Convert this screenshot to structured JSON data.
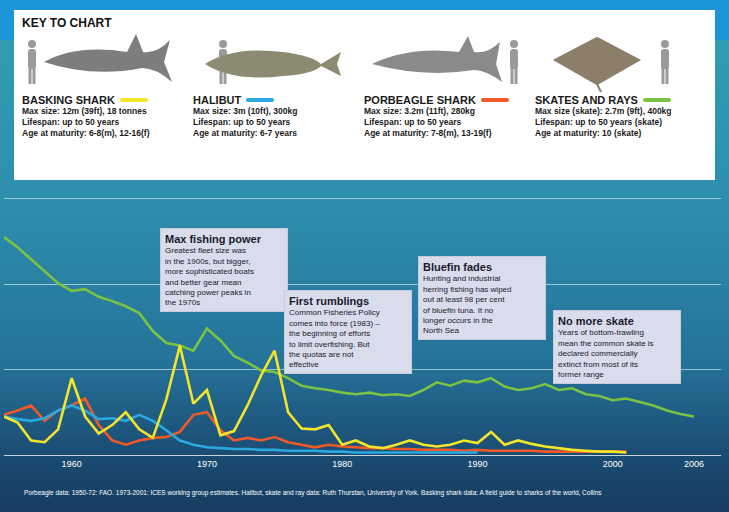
{
  "key_title": "KEY TO CHART",
  "chart_data": {
    "type": "line",
    "x": [
      1955,
      1956,
      1957,
      1958,
      1959,
      1960,
      1961,
      1962,
      1963,
      1964,
      1965,
      1966,
      1967,
      1968,
      1969,
      1970,
      1971,
      1972,
      1973,
      1974,
      1975,
      1976,
      1977,
      1978,
      1979,
      1980,
      1981,
      1982,
      1983,
      1984,
      1985,
      1986,
      1987,
      1988,
      1989,
      1990,
      1991,
      1992,
      1993,
      1994,
      1995,
      1996,
      1997,
      1998,
      1999,
      2000,
      2001,
      2002,
      2003,
      2004,
      2005,
      2006
    ],
    "xlim": [
      1955,
      2008
    ],
    "xticks": [
      1960,
      1970,
      1980,
      1990,
      2000,
      2006
    ],
    "ylim": [
      0,
      3.1
    ],
    "yticks": [
      0,
      1,
      2,
      3
    ],
    "grid": true,
    "tick_labels": "x",
    "series": [
      {
        "name": "BASKING SHARK",
        "color": "#f3e52a",
        "key_lines": [
          "Max size: 12m (39ft), 18 tonnes",
          "Lifespan: up to 50 years",
          "Age at maturity: 6-8(m), 12-16(f)"
        ],
        "values": [
          0.45,
          0.38,
          0.17,
          0.15,
          0.3,
          0.9,
          0.45,
          0.25,
          0.35,
          0.5,
          0.3,
          0.2,
          0.65,
          1.28,
          0.6,
          0.76,
          0.23,
          0.28,
          0.58,
          0.93,
          1.22,
          0.5,
          0.31,
          0.3,
          0.35,
          0.12,
          0.17,
          0.1,
          0.08,
          0.12,
          0.17,
          0.12,
          0.1,
          0.12,
          0.17,
          0.14,
          0.27,
          0.12,
          0.17,
          0.13,
          0.1,
          0.08,
          0.06,
          0.05,
          0.04,
          0.04,
          0.03,
          null,
          null,
          null,
          null,
          null
        ]
      },
      {
        "name": "HALIBUT",
        "color": "#2aa8e0",
        "key_lines": [
          "Max size: 3m (10ft), 300kg",
          "Lifespan: up to 50 years",
          "Age at maturity: 6-7 years"
        ],
        "values": [
          0.45,
          0.42,
          0.4,
          0.43,
          0.52,
          0.58,
          0.52,
          0.42,
          0.43,
          0.4,
          0.47,
          0.4,
          0.29,
          0.17,
          0.12,
          0.09,
          0.08,
          0.07,
          0.07,
          0.06,
          0.06,
          0.05,
          0.05,
          0.05,
          0.04,
          0.04,
          0.03,
          0.03,
          0.03,
          0.03,
          0.03,
          0.03,
          0.03,
          0.03,
          0.03,
          0.03,
          null,
          null,
          null,
          null,
          null,
          null,
          null,
          null,
          null,
          null,
          null,
          null,
          null,
          null,
          null,
          null
        ]
      },
      {
        "name": "PORBEAGLE SHARK",
        "color": "#f05a28",
        "key_lines": [
          "Max size: 3.2m (11ft), 280kg",
          "Lifespan: up to 50 years",
          "Age at maturity: 7-8(m), 13-19(f)"
        ],
        "values": [
          0.47,
          0.52,
          0.58,
          0.4,
          0.52,
          0.58,
          0.66,
          0.35,
          0.17,
          0.12,
          0.17,
          0.2,
          0.21,
          0.27,
          0.47,
          0.5,
          0.29,
          0.17,
          0.2,
          0.17,
          0.21,
          0.15,
          0.12,
          0.09,
          0.12,
          0.1,
          0.09,
          0.08,
          0.08,
          0.07,
          0.07,
          0.06,
          0.06,
          0.06,
          0.05,
          0.06,
          0.05,
          0.05,
          0.05,
          0.05,
          0.04,
          0.04,
          0.04,
          0.04,
          0.04,
          0.04,
          0.04,
          null,
          null,
          null,
          null,
          null
        ]
      },
      {
        "name": "SKATES AND RAYS",
        "color": "#7cc242",
        "key_lines": [
          "Max size (skate): 2.7m (9ft), 400kg",
          "Lifespan: up to 50 years (skate)",
          "Age at maturity: 10 (skate)"
        ],
        "values": [
          2.55,
          2.43,
          2.29,
          2.15,
          2.01,
          1.92,
          1.94,
          1.85,
          1.8,
          1.74,
          1.66,
          1.45,
          1.31,
          1.28,
          1.22,
          1.48,
          1.34,
          1.16,
          1.08,
          0.99,
          0.97,
          0.9,
          0.81,
          0.78,
          0.76,
          0.73,
          0.71,
          0.73,
          0.7,
          0.71,
          0.69,
          0.76,
          0.85,
          0.81,
          0.87,
          0.85,
          0.9,
          0.8,
          0.76,
          0.78,
          0.83,
          0.76,
          0.78,
          0.71,
          0.69,
          0.64,
          0.66,
          0.62,
          0.58,
          0.52,
          0.48,
          0.45
        ]
      }
    ],
    "annotations": [
      {
        "title": "Max fishing power",
        "text": "Greatest fleet size was in the 1900s, but bigger, more sophisticated boats and better gear mean catching power peaks in the 1970s"
      },
      {
        "title": "First rumblings",
        "text": "Common Fisheries Policy comes into force (1983) – the beginning of efforts to limit overfishing. But the quotas are not effective"
      },
      {
        "title": "Bluefin fades",
        "text": "Hunting and industrial herring fishing has wiped out at least 98 per cent of bluefin tuna. It no longer occurs in the North Sea"
      },
      {
        "title": "No more skate",
        "text": "Years of bottom-trawling mean the common skate is declared commercially extinct from most of its former range"
      }
    ]
  },
  "source": "Porbeagle data: 1950-72: FAO. 1973-2001: ICES working group estimates. Halibut, skate and ray data: Ruth Thurstan, University of York. Basking shark data: A field guide to sharks of the world, Collins"
}
